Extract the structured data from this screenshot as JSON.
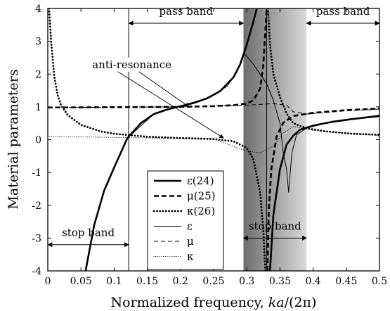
{
  "chart_data": {
    "type": "line",
    "xlabel_prefix": "Normalized frequency, ",
    "xlabel_var": "ka",
    "xlabel_suffix": "/(2π)",
    "ylabel": "Material parameters",
    "xlim": [
      0,
      0.5
    ],
    "ylim": [
      -4,
      4
    ],
    "x_ticks": [
      "0",
      "0.05",
      "0.1",
      "0.15",
      "0.2",
      "0.25",
      "0.3",
      "0.35",
      "0.4",
      "0.45",
      "0.5"
    ],
    "y_ticks": [
      "-4",
      "-3",
      "-2",
      "-1",
      "0",
      "1",
      "2",
      "3",
      "4"
    ],
    "grid": false,
    "shaded_region": {
      "x_start": 0.295,
      "x_end": 0.39,
      "color_dark": "#6e6e6e",
      "color_light": "#d9d9d9"
    },
    "band_edges": [
      0.122,
      0.33
    ],
    "annotations": [
      {
        "text": "pass band",
        "arrow_from_x": 0.122,
        "arrow_to_x": 0.295,
        "y": 3.55
      },
      {
        "text": "pass band",
        "arrow_from_x": 0.39,
        "arrow_to_x": 0.5,
        "y": 3.55
      },
      {
        "text": "stop band",
        "arrow_from_x": 0.0,
        "arrow_to_x": 0.122,
        "y": -3.2
      },
      {
        "text": "stop band",
        "arrow_from_x": 0.295,
        "arrow_to_x": 0.39,
        "y": -3.0
      },
      {
        "text": "anti-resonance",
        "points_to": [
          [
            0.213,
            1.0
          ],
          [
            0.265,
            0.05
          ]
        ]
      }
    ],
    "legend": {
      "position": "lower-center",
      "entries": [
        {
          "label": "ε(24)",
          "style": "thick-solid"
        },
        {
          "label": "μ(25)",
          "style": "thick-dashed"
        },
        {
          "label": "κ(26)",
          "style": "thick-dotted"
        },
        {
          "label": "ε",
          "style": "thin-solid"
        },
        {
          "label": "μ",
          "style": "thin-dashed"
        },
        {
          "label": "κ",
          "style": "thin-dotted"
        }
      ]
    },
    "series": [
      {
        "name": "ε(24)",
        "style": "thick-solid",
        "segments": [
          [
            [
              0.057,
              -4.0
            ],
            [
              0.07,
              -2.6
            ],
            [
              0.085,
              -1.55
            ],
            [
              0.1,
              -0.85
            ],
            [
              0.12,
              0.05
            ],
            [
              0.14,
              0.5
            ],
            [
              0.16,
              0.78
            ],
            [
              0.18,
              0.92
            ],
            [
              0.2,
              1.02
            ],
            [
              0.22,
              1.12
            ],
            [
              0.24,
              1.26
            ],
            [
              0.26,
              1.48
            ],
            [
              0.28,
              1.9
            ],
            [
              0.29,
              2.3
            ],
            [
              0.3,
              2.9
            ],
            [
              0.31,
              3.6
            ],
            [
              0.315,
              4.0
            ]
          ],
          [
            [
              0.335,
              -4.0
            ],
            [
              0.34,
              -2.3
            ],
            [
              0.35,
              -0.9
            ],
            [
              0.36,
              -0.15
            ],
            [
              0.37,
              0.12
            ],
            [
              0.38,
              0.3
            ],
            [
              0.4,
              0.43
            ],
            [
              0.43,
              0.55
            ],
            [
              0.46,
              0.63
            ],
            [
              0.5,
              0.73
            ]
          ]
        ]
      },
      {
        "name": "μ(25)",
        "style": "thick-dashed",
        "segments": [
          [
            [
              0.0,
              0.98
            ],
            [
              0.1,
              0.99
            ],
            [
              0.2,
              1.0
            ],
            [
              0.25,
              1.02
            ],
            [
              0.28,
              1.05
            ],
            [
              0.3,
              1.1
            ],
            [
              0.31,
              1.2
            ],
            [
              0.32,
              1.55
            ],
            [
              0.325,
              2.3
            ],
            [
              0.328,
              3.3
            ],
            [
              0.33,
              4.0
            ]
          ],
          [
            [
              0.331,
              -4.0
            ],
            [
              0.333,
              -2.2
            ],
            [
              0.337,
              -0.9
            ],
            [
              0.345,
              0.1
            ],
            [
              0.355,
              0.52
            ],
            [
              0.37,
              0.72
            ],
            [
              0.4,
              0.82
            ],
            [
              0.45,
              0.9
            ],
            [
              0.5,
              0.95
            ]
          ]
        ]
      },
      {
        "name": "κ(26)",
        "style": "thick-dotted",
        "segments": [
          [
            [
              0.002,
              4.0
            ],
            [
              0.005,
              3.0
            ],
            [
              0.01,
              1.9
            ],
            [
              0.015,
              1.35
            ],
            [
              0.02,
              1.05
            ],
            [
              0.03,
              0.75
            ],
            [
              0.05,
              0.45
            ],
            [
              0.08,
              0.25
            ],
            [
              0.1,
              0.18
            ],
            [
              0.15,
              0.09
            ],
            [
              0.2,
              0.05
            ],
            [
              0.25,
              0.02
            ],
            [
              0.28,
              -0.05
            ],
            [
              0.3,
              -0.25
            ],
            [
              0.31,
              -0.6
            ],
            [
              0.32,
              -1.6
            ],
            [
              0.325,
              -2.8
            ],
            [
              0.328,
              -4.0
            ]
          ],
          [
            [
              0.332,
              4.0
            ],
            [
              0.335,
              2.9
            ],
            [
              0.34,
              2.0
            ],
            [
              0.35,
              1.3
            ],
            [
              0.36,
              0.8
            ],
            [
              0.37,
              0.5
            ],
            [
              0.39,
              0.35
            ],
            [
              0.42,
              0.25
            ],
            [
              0.46,
              0.18
            ],
            [
              0.5,
              0.15
            ]
          ]
        ]
      },
      {
        "name": "ε",
        "style": "thin-solid",
        "segments": [
          [
            [
              0.12,
              0.05
            ],
            [
              0.16,
              0.78
            ],
            [
              0.2,
              1.02
            ],
            [
              0.24,
              1.27
            ],
            [
              0.27,
              1.62
            ],
            [
              0.285,
              2.05
            ],
            [
              0.292,
              2.45
            ],
            [
              0.295,
              2.65
            ],
            [
              0.31,
              2.3
            ],
            [
              0.33,
              1.7
            ],
            [
              0.34,
              1.2
            ],
            [
              0.35,
              0.5
            ],
            [
              0.355,
              -0.4
            ],
            [
              0.36,
              -0.9
            ],
            [
              0.363,
              -1.6
            ],
            [
              0.368,
              -0.4
            ],
            [
              0.375,
              0.15
            ],
            [
              0.39,
              0.35
            ],
            [
              0.42,
              0.5
            ],
            [
              0.46,
              0.62
            ],
            [
              0.5,
              0.7
            ]
          ]
        ]
      },
      {
        "name": "μ",
        "style": "thin-dashed",
        "segments": [
          [
            [
              0.0,
              0.98
            ],
            [
              0.2,
              1.0
            ],
            [
              0.3,
              1.05
            ],
            [
              0.34,
              1.1
            ],
            [
              0.36,
              1.05
            ],
            [
              0.37,
              0.85
            ],
            [
              0.39,
              0.78
            ],
            [
              0.45,
              0.88
            ],
            [
              0.5,
              0.93
            ]
          ]
        ]
      },
      {
        "name": "κ",
        "style": "thin-dotted",
        "segments": [
          [
            [
              0.0,
              0.1
            ],
            [
              0.25,
              0.02
            ],
            [
              0.3,
              -0.35
            ],
            [
              0.32,
              -0.4
            ],
            [
              0.34,
              -0.2
            ],
            [
              0.355,
              0.2
            ],
            [
              0.37,
              0.4
            ],
            [
              0.4,
              0.28
            ],
            [
              0.45,
              0.2
            ],
            [
              0.5,
              0.12
            ]
          ]
        ]
      }
    ]
  }
}
